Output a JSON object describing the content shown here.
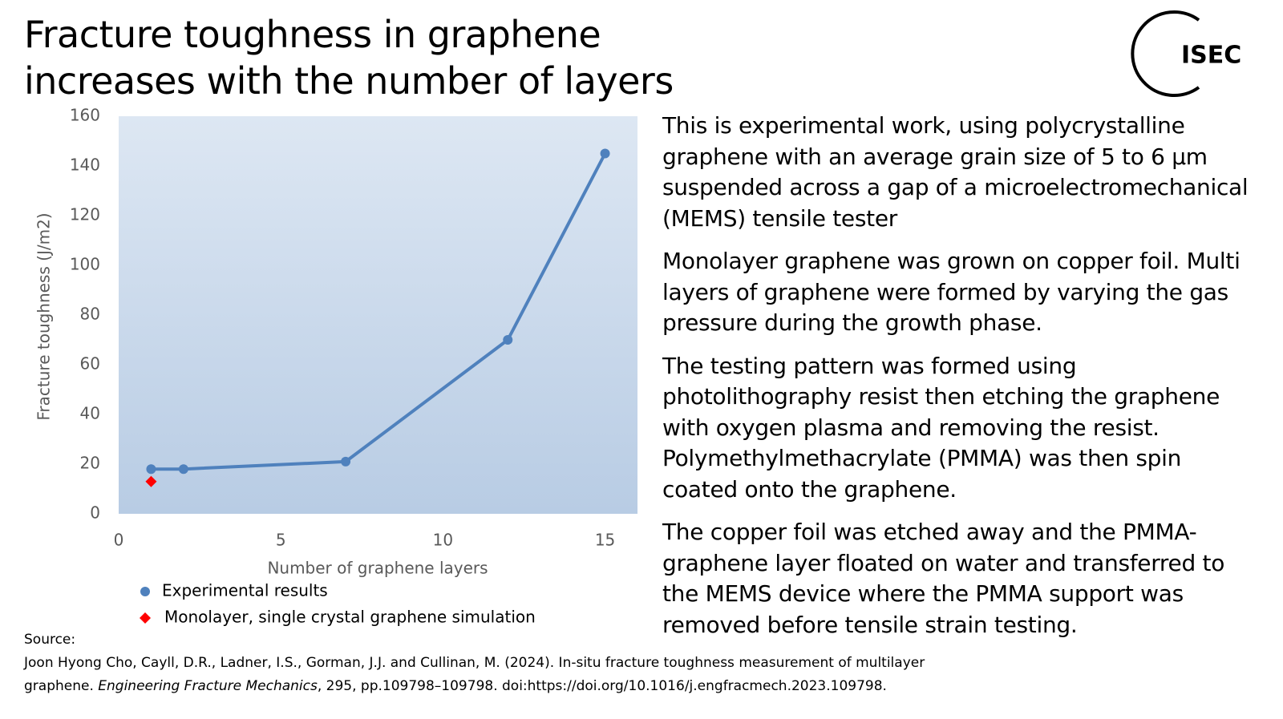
{
  "title": "Fracture toughness in graphene increases with the number of layers",
  "logo": "ISEC",
  "chart_data": {
    "type": "line",
    "x_label": "Number of graphene layers",
    "y_label": "Fracture toughness (J/m2)",
    "xlim": [
      0,
      16
    ],
    "xticks": [
      0,
      5,
      10,
      15
    ],
    "ylim": [
      0,
      160
    ],
    "yticks": [
      0,
      20,
      40,
      60,
      80,
      100,
      120,
      140,
      160
    ],
    "legend": "bottom",
    "series": [
      {
        "name": "Experimental results",
        "color": "#4f81bd",
        "marker": "circle",
        "line": true,
        "x": [
          1,
          2,
          7,
          12,
          15
        ],
        "values": [
          18,
          18,
          21,
          70,
          145
        ]
      },
      {
        "name": "Monolayer, single crystal graphene simulation",
        "color": "#ff0000",
        "marker": "diamond",
        "line": false,
        "x": [
          1
        ],
        "values": [
          13
        ]
      }
    ]
  },
  "paragraphs": [
    "This is experimental work, using polycrystalline graphene with an average grain size of 5 to 6 µm suspended across a gap of a microelectromechanical (MEMS) tensile tester",
    "Monolayer graphene was grown on copper foil. Multi layers of graphene were formed by varying the gas pressure during the growth phase.",
    "The testing pattern was formed using photolithography resist then etching the graphene with oxygen plasma and removing the resist. Polymethylmethacrylate (PMMA) was then spin coated onto the graphene.",
    "The copper foil was etched away and the PMMA-graphene layer floated on water and transferred to the MEMS device where the PMMA support was removed before tensile strain testing."
  ],
  "source": {
    "label": "Source:",
    "before": "Joon Hyong Cho, Cayll, D.R., Ladner, I.S., Gorman, J.J. and Cullinan, M. (2024). In-situ fracture toughness measurement of multilayer graphene.",
    "journal": "Engineering Fracture Mechanics",
    "after": ", 295, pp.109798–109798. doi:https://doi.org/10.1016/j.engfracmech.2023.109798."
  }
}
